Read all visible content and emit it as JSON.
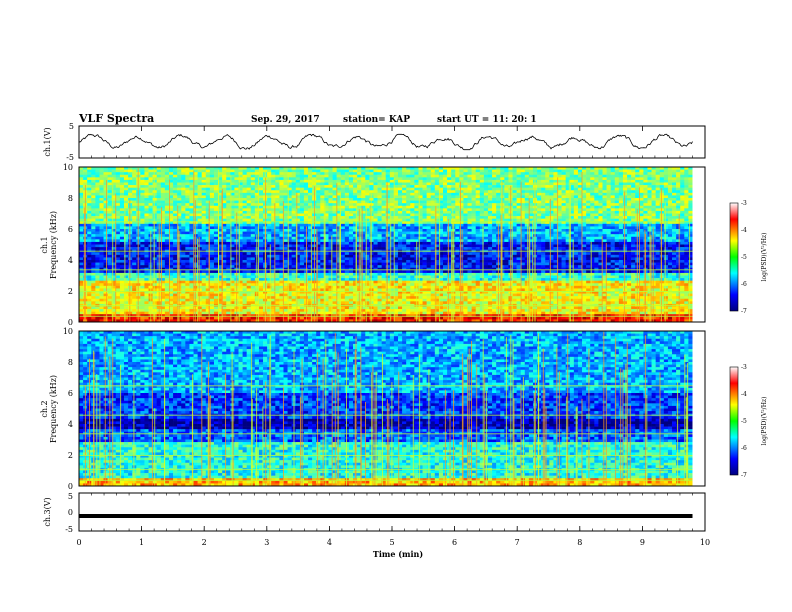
{
  "header": {
    "title": "VLF Spectra",
    "date": "Sep. 29, 2017",
    "station": "station= KAP",
    "start": "start  UT =   11: 20: 1"
  },
  "colorbar": {
    "label": "log(PSD)(V²/Hz)",
    "ticks": [
      "-3",
      "-4",
      "-5",
      "-6",
      "-7"
    ],
    "range": [
      -7,
      -3
    ]
  },
  "chart_data": [
    {
      "type": "line",
      "panel": "ch.1 waveform",
      "ylabel": "ch.1(V)",
      "ylim": [
        -5,
        5
      ],
      "yticks": [
        "5",
        "-5"
      ],
      "xlim": [
        0,
        10
      ],
      "x_end": 9.8,
      "approx_amplitude": 1.2
    },
    {
      "type": "heatmap",
      "panel": "ch.1 spectrogram",
      "ylabel": "ch.1\nFrequency (kHz)",
      "ylabel_top": "ch.1",
      "ylabel_bottom": "Frequency (kHz)",
      "ylim": [
        0,
        10
      ],
      "yticks": [
        "0",
        "2",
        "4",
        "6",
        "8",
        "10"
      ],
      "xlim": [
        0,
        10
      ],
      "x_end": 9.8
    },
    {
      "type": "heatmap",
      "panel": "ch.2 spectrogram",
      "ylabel_top": "ch.2",
      "ylabel_bottom": "Frequency (kHz)",
      "ylim": [
        0,
        10
      ],
      "yticks": [
        "0",
        "2",
        "4",
        "6",
        "8",
        "10"
      ],
      "xlim": [
        0,
        10
      ],
      "x_end": 9.8
    },
    {
      "type": "line",
      "panel": "ch.3 waveform",
      "ylabel": "ch.3(V)",
      "ylim": [
        -5,
        5
      ],
      "yticks": [
        "5",
        "0",
        "-5"
      ],
      "xlim": [
        0,
        10
      ],
      "x_end": 9.8,
      "approx_value": 0
    }
  ],
  "xaxis": {
    "label": "Time (min)",
    "ticks": [
      "0",
      "1",
      "2",
      "3",
      "4",
      "5",
      "6",
      "7",
      "8",
      "9",
      "10"
    ]
  }
}
